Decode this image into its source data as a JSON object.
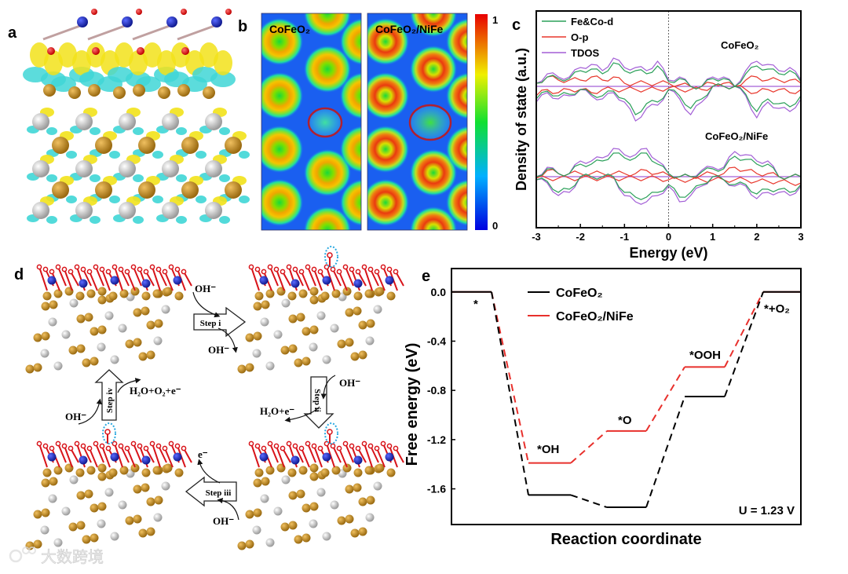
{
  "panel_labels": {
    "a": "a",
    "b": "b",
    "c": "c",
    "d": "d",
    "e": "e"
  },
  "panel_b": {
    "map_titles": [
      "CoFeO₂",
      "CoFeO₂/NiFe"
    ],
    "colorbar_max": "1",
    "colorbar_min": "0"
  },
  "panel_d": {
    "steps": [
      "Step i",
      "Step ii",
      "Step iii",
      "Step iv"
    ],
    "species": {
      "oh_in_i": "OH⁻",
      "oh_out_i": "OH⁻",
      "oh_in_ii": "OH⁻",
      "out_ii": "H₂O+e⁻",
      "oh_in_iii": "OH⁻",
      "out_iii": "e⁻",
      "oh_in_iv": "OH⁻",
      "out_iv": "H₂O+O₂+e⁻"
    }
  },
  "watermark": "大数跨境",
  "chart_data": [
    {
      "panel": "c",
      "type": "line",
      "xlabel": "Energy (eV)",
      "ylabel": "Density of state (a.u.)",
      "xlim": [
        -3,
        3
      ],
      "xticks": [
        "-3",
        "-2",
        "-1",
        "0",
        "1",
        "2",
        "3"
      ],
      "legend": [
        "Fe&Co-d",
        "O-p",
        "TDOS"
      ],
      "legend_position": "top-left",
      "colors": {
        "Fe&Co-d": "#2ca05a",
        "O-p": "#e8372c",
        "TDOS": "#a35fd6"
      },
      "x": [
        -3,
        -2.75,
        -2.5,
        -2.25,
        -2,
        -1.75,
        -1.5,
        -1.25,
        -1,
        -0.75,
        -0.5,
        -0.25,
        0,
        0.25,
        0.5,
        0.75,
        1,
        1.25,
        1.5,
        1.75,
        2,
        2.25,
        2.5,
        2.75,
        3
      ],
      "systems": [
        {
          "name": "CoFeO₂",
          "TDOS_up": [
            1,
            4,
            3,
            3,
            6,
            7,
            5,
            9,
            6,
            6,
            5,
            8,
            2,
            3,
            0,
            0,
            3,
            3,
            0,
            5,
            8,
            7,
            5,
            6,
            2
          ],
          "TDOS_down": [
            -5,
            -2,
            -4,
            -3,
            -1,
            -3,
            -4,
            -2,
            -5,
            -11,
            -7,
            -6,
            -1,
            -4,
            -9,
            -5,
            0,
            0,
            0,
            -3,
            -10,
            -5,
            -7,
            -8,
            -4
          ],
          "FeCo_d_up": [
            1,
            3,
            2.5,
            2.5,
            5,
            5.5,
            4,
            7.5,
            5,
            5,
            4,
            6.5,
            1.5,
            2.5,
            0,
            0,
            2.5,
            2.5,
            0,
            4,
            6.5,
            5.5,
            4,
            5,
            1.5
          ],
          "FeCo_d_down": [
            -4,
            -1.5,
            -3,
            -2.5,
            -1,
            -2.5,
            -3,
            -1.5,
            -4,
            -9,
            -5.5,
            -5,
            -1,
            -3,
            -7,
            -4,
            0,
            0,
            0,
            -2.5,
            -8,
            -4,
            -5.5,
            -6.5,
            -3
          ],
          "O_p_up": [
            1,
            3,
            2,
            2,
            2,
            3,
            2,
            3,
            1,
            1,
            1,
            1,
            1,
            0.5,
            0,
            0,
            1,
            1,
            0,
            2,
            3,
            2,
            2,
            2,
            1
          ],
          "O_p_down": [
            -3,
            -1,
            -2,
            -1,
            -1,
            -2,
            -1,
            -1,
            -1,
            -1,
            -1,
            -1,
            -0.5,
            -1,
            -1,
            -1,
            0,
            0,
            0,
            -1,
            -2,
            -1,
            -1,
            -2,
            -1
          ]
        },
        {
          "name": "CoFeO₂/NiFe",
          "TDOS_up": [
            0,
            3,
            1,
            1,
            5,
            5,
            6,
            9,
            7,
            7,
            9,
            5,
            1,
            0,
            0,
            2,
            3,
            3,
            8,
            7,
            5,
            5,
            0,
            0,
            0
          ],
          "TDOS_down": [
            -1,
            -2,
            -6,
            -5,
            0,
            0,
            0,
            0,
            -6,
            -8,
            -8,
            -6,
            -3,
            -8,
            -6,
            -3,
            0,
            -1,
            -3,
            -3,
            -7,
            -5,
            -5,
            -6,
            -3
          ],
          "FeCo_d_up": [
            0,
            2.5,
            1,
            1,
            4,
            4,
            5,
            7.5,
            6,
            6,
            7.5,
            4,
            1,
            0,
            0,
            1.5,
            2.5,
            2.5,
            6.5,
            5.5,
            4,
            4,
            0,
            0,
            0
          ],
          "FeCo_d_down": [
            -1,
            -1.5,
            -5,
            -4,
            0,
            0,
            0,
            0,
            -5,
            -6.5,
            -6.5,
            -5,
            -2.5,
            -6.5,
            -5,
            -2.5,
            0,
            -1,
            -2.5,
            -2.5,
            -5.5,
            -4,
            -4,
            -5,
            -2.5
          ],
          "O_p_up": [
            0,
            2,
            1,
            1,
            1,
            1,
            1,
            1,
            1,
            1,
            2,
            1,
            0.5,
            0,
            0,
            0.5,
            1,
            1,
            3,
            2,
            1,
            1,
            0,
            0,
            0
          ],
          "O_p_down": [
            -0.5,
            -0.5,
            -0.5,
            -0.5,
            -0.5,
            -0.5,
            -0.5,
            -0.5,
            -0.5,
            -0.5,
            -0.5,
            -0.5,
            -1,
            -1,
            -1,
            -1,
            -1,
            -1,
            -1,
            -1,
            -1.5,
            -1.5,
            -1.5,
            -2,
            -2
          ]
        }
      ]
    },
    {
      "panel": "e",
      "type": "line",
      "title": "",
      "xlabel": "Reaction coordinate",
      "ylabel": "Free energy (eV)",
      "ylim": [
        -1.89,
        0.19
      ],
      "yticks": [
        "0.0",
        "-0.4",
        "-0.8",
        "-1.2",
        "-1.6"
      ],
      "ytick_values": [
        0,
        -0.4,
        -0.8,
        -1.2,
        -1.6
      ],
      "categories": [
        "*",
        "*OH",
        "*O",
        "*OOH",
        "*+O₂"
      ],
      "series": [
        {
          "name": "CoFeO₂",
          "color": "#000000",
          "values": [
            0,
            -1.65,
            -1.75,
            -0.85,
            0
          ]
        },
        {
          "name": "CoFeO₂/NiFe",
          "color": "#e8302c",
          "values": [
            0,
            -1.39,
            -1.13,
            -0.61,
            0
          ]
        }
      ],
      "legend_position": "top-left",
      "annotation": "U = 1.23 V"
    }
  ]
}
